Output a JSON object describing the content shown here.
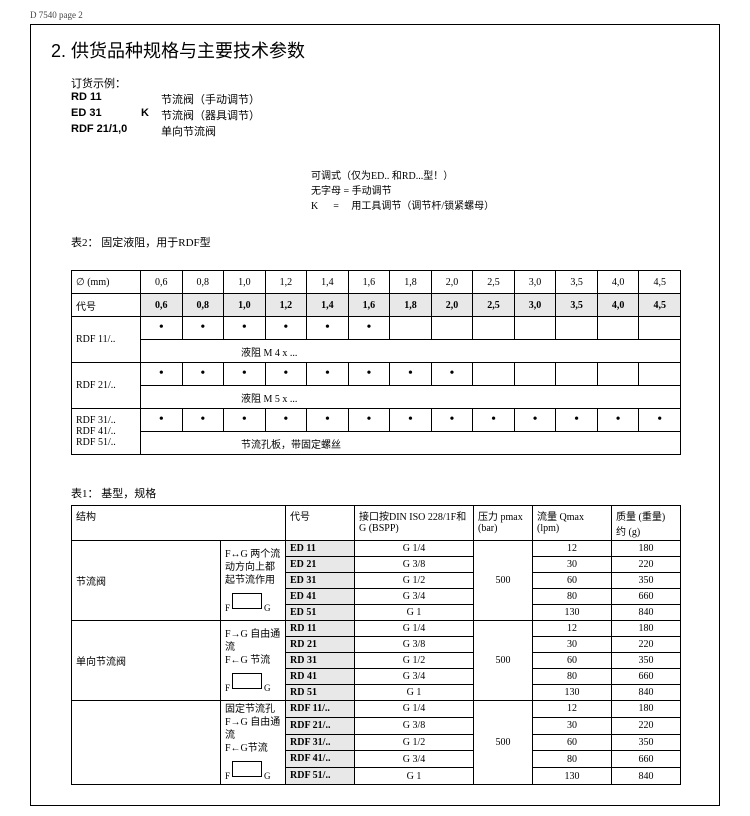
{
  "pageHeader": "D 7540  page 2",
  "title": "2. 供货品种规格与主要技术参数",
  "orderLabel": "订货示例：",
  "orderRows": [
    {
      "code": "RD 11",
      "k": "",
      "desc": "节流阀（手动调节）"
    },
    {
      "code": "ED 31",
      "k": "K",
      "desc": "节流阀（器具调节）"
    },
    {
      "code": "RDF 21/1,0",
      "k": "",
      "desc": "单向节流阀"
    }
  ],
  "adjustNote1": "可调式（仅为ED.. 和RD...型！）",
  "adjustNote2": "无字母 = 手动调节",
  "adjustNote3": "K      =     用工具调节（调节杆/锁紧螺母）",
  "table2Caption": "表2： 固定液阻，用于RDF型",
  "table2": {
    "diamLabel": "∅ (mm)",
    "codeLabel": "代号",
    "sizes": [
      "0,6",
      "0,8",
      "1,0",
      "1,2",
      "1,4",
      "1,6",
      "1,8",
      "2,0",
      "2,5",
      "3,0",
      "3,5",
      "4,0",
      "4,5"
    ],
    "codes": [
      "0,6",
      "0,8",
      "1,0",
      "1,2",
      "1,4",
      "1,6",
      "1,8",
      "2,0",
      "2,5",
      "3,0",
      "3,5",
      "4,0",
      "4,5"
    ],
    "rows": [
      {
        "label": "RDF 11/..",
        "dots": [
          1,
          1,
          1,
          1,
          1,
          1,
          0,
          0,
          0,
          0,
          0,
          0,
          0
        ],
        "note": "液阻  M 4 x ..."
      },
      {
        "label": "RDF 21/..",
        "dots": [
          1,
          1,
          1,
          1,
          1,
          1,
          1,
          1,
          0,
          0,
          0,
          0,
          0
        ],
        "note": "液阻  M 5 x ..."
      },
      {
        "label": "RDF 31/..\nRDF 41/..\nRDF 51/..",
        "dots": [
          1,
          1,
          1,
          1,
          1,
          1,
          1,
          1,
          1,
          1,
          1,
          1,
          1
        ],
        "note": "节流孔板，带固定螺丝"
      }
    ]
  },
  "table1Caption": "表1： 基型，规格",
  "table1Headers": {
    "struct": "结构",
    "code": "代号",
    "port": "接口按DIN ISO 228/1F和G (BSPP)",
    "pmax": "压力 pmax (bar)",
    "qmax": "流量 Qmax (lpm)",
    "mass": "质量 (重量) 约 (g)"
  },
  "table1Groups": [
    {
      "structLabel": "节流阀",
      "structDesc": "F↔G 两个流动方向上都起节流作用",
      "rows": [
        [
          "ED 11",
          "G 1/4",
          "",
          "12",
          "180"
        ],
        [
          "ED 21",
          "G 3/8",
          "",
          "30",
          "220"
        ],
        [
          "ED 31",
          "G 1/2",
          "500",
          "60",
          "350"
        ],
        [
          "ED 41",
          "G 3/4",
          "",
          "80",
          "660"
        ],
        [
          "ED 51",
          "G 1",
          "",
          "130",
          "840"
        ]
      ]
    },
    {
      "structLabel": "单向节流阀",
      "structDesc": "F→G 自由通流\nF←G 节流",
      "rows": [
        [
          "RD 11",
          "G 1/4",
          "",
          "12",
          "180"
        ],
        [
          "RD 21",
          "G 3/8",
          "",
          "30",
          "220"
        ],
        [
          "RD 31",
          "G 1/2",
          "500",
          "60",
          "350"
        ],
        [
          "RD 41",
          "G 3/4",
          "",
          "80",
          "660"
        ],
        [
          "RD 51",
          "G 1",
          "",
          "130",
          "840"
        ]
      ]
    },
    {
      "structLabel": "",
      "structDesc": "固定节流孔\nF→G 自由通流\nF←G节流",
      "rows": [
        [
          "RDF 11/..",
          "G 1/4",
          "",
          "12",
          "180"
        ],
        [
          "RDF 21/..",
          "G 3/8",
          "",
          "30",
          "220"
        ],
        [
          "RDF 31/..",
          "G 1/2",
          "500",
          "60",
          "350"
        ],
        [
          "RDF 41/..",
          "G 3/4",
          "",
          "80",
          "660"
        ],
        [
          "RDF 51/..",
          "G 1",
          "",
          "130",
          "840"
        ]
      ]
    }
  ]
}
